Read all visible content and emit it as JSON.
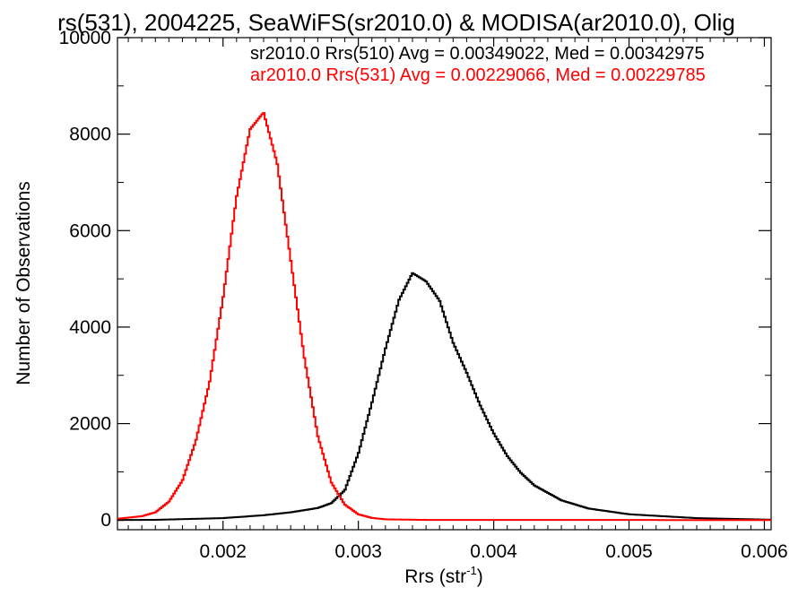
{
  "chart_data": {
    "type": "line",
    "title": "rs(531), 2004225, SeaWiFS(sr2010.0) & MODISA(ar2010.0), Olig",
    "xlabel": "Rrs (str",
    "xlabel_sup": "-1",
    "xlabel_close": ")",
    "ylabel": "Number of Observations",
    "xlim": [
      0.00122,
      0.00605
    ],
    "ylim": [
      -200,
      10000
    ],
    "xticks": [
      {
        "value": 0.002,
        "label": "0.002"
      },
      {
        "value": 0.003,
        "label": "0.003"
      },
      {
        "value": 0.004,
        "label": "0.004"
      },
      {
        "value": 0.005,
        "label": "0.005"
      },
      {
        "value": 0.006,
        "label": "0.006"
      }
    ],
    "yticks": [
      {
        "value": 0,
        "label": "0"
      },
      {
        "value": 2000,
        "label": "2000"
      },
      {
        "value": 4000,
        "label": "4000"
      },
      {
        "value": 6000,
        "label": "6000"
      },
      {
        "value": 8000,
        "label": "8000"
      },
      {
        "value": 10000,
        "label": "10000"
      }
    ],
    "grid": false,
    "legend_position": "top-right",
    "series": [
      {
        "name": "sr2010.0 Rrs(510) Avg = 0.00349022, Med = 0.00342975",
        "color": "#000000",
        "style": "step",
        "x": [
          0.0012,
          0.0015,
          0.002,
          0.0023,
          0.0025,
          0.0027,
          0.0028,
          0.0029,
          0.003,
          0.0031,
          0.0032,
          0.0033,
          0.0034,
          0.0035,
          0.0036,
          0.0037,
          0.0038,
          0.0039,
          0.004,
          0.0041,
          0.0042,
          0.0043,
          0.0045,
          0.0047,
          0.005,
          0.0055,
          0.006
        ],
        "values": [
          0,
          5,
          40,
          100,
          160,
          250,
          350,
          620,
          1380,
          2430,
          3550,
          4560,
          5120,
          4950,
          4550,
          3680,
          3060,
          2380,
          1800,
          1330,
          980,
          720,
          410,
          240,
          120,
          40,
          10
        ]
      },
      {
        "name": "ar2010.0 Rrs(531) Avg = 0.00229066, Med = 0.00229785",
        "color": "#ff0000",
        "style": "step",
        "x": [
          0.0012,
          0.0014,
          0.0015,
          0.0016,
          0.0017,
          0.0018,
          0.0019,
          0.002,
          0.0021,
          0.0022,
          0.0023,
          0.0024,
          0.0025,
          0.0026,
          0.0027,
          0.0028,
          0.0029,
          0.003,
          0.0031,
          0.0032,
          0.0035,
          0.006
        ],
        "values": [
          20,
          80,
          160,
          380,
          820,
          1650,
          2850,
          4600,
          6700,
          8100,
          8450,
          7400,
          5400,
          3380,
          1750,
          780,
          320,
          120,
          45,
          15,
          3,
          0
        ]
      }
    ]
  }
}
